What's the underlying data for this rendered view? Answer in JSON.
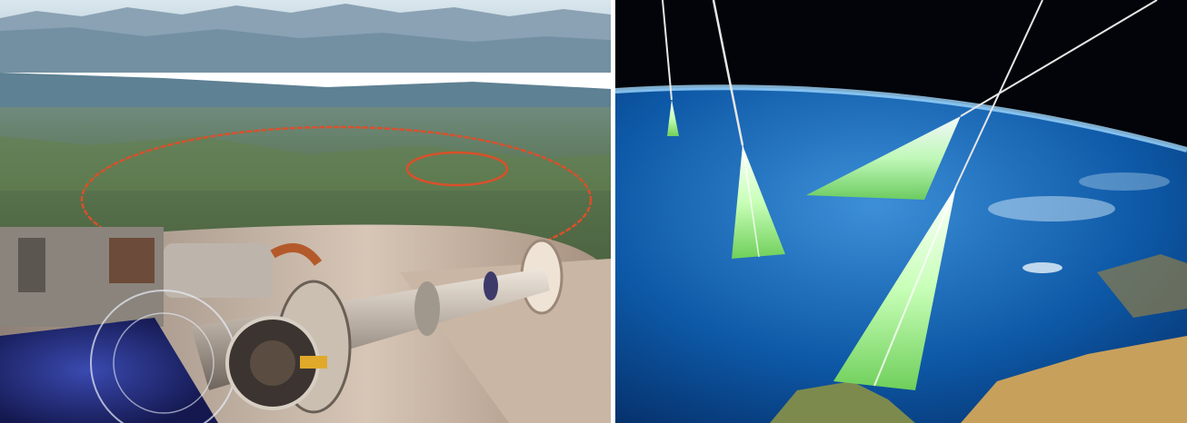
{
  "image": {
    "panels": [
      {
        "subject": "lhc-tunnel-aerial"
      },
      {
        "subject": "cosmic-ray-air-showers"
      }
    ]
  },
  "colors": {
    "sky": "#c9dbe6",
    "mountains": "#7e98ab",
    "lake": "#5a7c8e",
    "land": "#5d7752",
    "ring": "#d9502a",
    "tunnel": "#cdbcae",
    "beam_pipe": "#b9b0a6",
    "dipole_blue": "#2a2f8a",
    "space": "#020409",
    "ocean": "#0c5aa8",
    "atmosphere": "#8fd0ff",
    "desert": "#c7a05c",
    "shower": "#e8ffe0"
  }
}
